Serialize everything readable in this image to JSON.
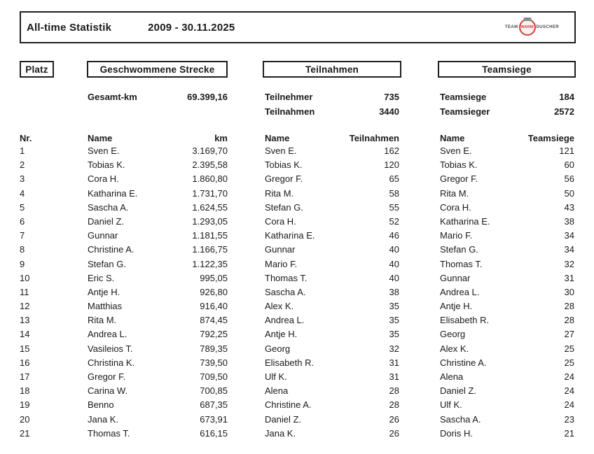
{
  "title_bar": {
    "title": "All-time Statistik",
    "date_range": "2009 - 30.11.2025",
    "logo": {
      "team": "TEAM",
      "warm": "WARM",
      "duscher": "DUSCHER",
      "circle_color": "#d63a3a"
    }
  },
  "section_headers": {
    "platz": "Platz",
    "strecke": "Geschwommene Strecke",
    "teilnahmen": "Teilnahmen",
    "teamsiege": "Teamsiege"
  },
  "summary": {
    "gesamt_km_label": "Gesamt-km",
    "gesamt_km_value": "69.399,16",
    "teilnehmer_label": "Teilnehmer",
    "teilnehmer_value": "735",
    "teilnahmen_label": "Teilnahmen",
    "teilnahmen_value": "3440",
    "teamsiege_label": "Teamsiege",
    "teamsiege_value": "184",
    "teamsieger_label": "Teamsieger",
    "teamsieger_value": "2572"
  },
  "table": {
    "headers": {
      "nr": "Nr.",
      "name1": "Name",
      "km": "km",
      "name2": "Name",
      "teilnahmen": "Teilnahmen",
      "name3": "Name",
      "teamsiege": "Teamsiege"
    },
    "rows": [
      {
        "nr": "1",
        "km_name": "Sven E.",
        "km": "3.169,70",
        "tn_name": "Sven E.",
        "tn": "162",
        "ts_name": "Sven E.",
        "ts": "121"
      },
      {
        "nr": "2",
        "km_name": "Tobias K.",
        "km": "2.395,58",
        "tn_name": "Tobias K.",
        "tn": "120",
        "ts_name": "Tobias K.",
        "ts": "60"
      },
      {
        "nr": "3",
        "km_name": "Cora H.",
        "km": "1.860,80",
        "tn_name": "Gregor F.",
        "tn": "65",
        "ts_name": "Gregor F.",
        "ts": "56"
      },
      {
        "nr": "4",
        "km_name": "Katharina E.",
        "km": "1.731,70",
        "tn_name": "Rita M.",
        "tn": "58",
        "ts_name": "Rita M.",
        "ts": "50"
      },
      {
        "nr": "5",
        "km_name": "Sascha A.",
        "km": "1.624,55",
        "tn_name": "Stefan G.",
        "tn": "55",
        "ts_name": "Cora H.",
        "ts": "43"
      },
      {
        "nr": "6",
        "km_name": "Daniel Z.",
        "km": "1.293,05",
        "tn_name": "Cora H.",
        "tn": "52",
        "ts_name": "Katharina E.",
        "ts": "38"
      },
      {
        "nr": "7",
        "km_name": "Gunnar",
        "km": "1.181,55",
        "tn_name": "Katharina E.",
        "tn": "46",
        "ts_name": "Mario F.",
        "ts": "34"
      },
      {
        "nr": "8",
        "km_name": "Christine A.",
        "km": "1.166,75",
        "tn_name": "Gunnar",
        "tn": "40",
        "ts_name": "Stefan G.",
        "ts": "34"
      },
      {
        "nr": "9",
        "km_name": "Stefan G.",
        "km": "1.122,35",
        "tn_name": "Mario F.",
        "tn": "40",
        "ts_name": "Thomas T.",
        "ts": "32"
      },
      {
        "nr": "10",
        "km_name": "Eric S.",
        "km": "995,05",
        "tn_name": "Thomas T.",
        "tn": "40",
        "ts_name": "Gunnar",
        "ts": "31"
      },
      {
        "nr": "11",
        "km_name": "Antje H.",
        "km": "926,80",
        "tn_name": "Sascha A.",
        "tn": "38",
        "ts_name": "Andrea L.",
        "ts": "30"
      },
      {
        "nr": "12",
        "km_name": "Matthias",
        "km": "916,40",
        "tn_name": "Alex K.",
        "tn": "35",
        "ts_name": "Antje H.",
        "ts": "28"
      },
      {
        "nr": "13",
        "km_name": "Rita M.",
        "km": "874,45",
        "tn_name": "Andrea L.",
        "tn": "35",
        "ts_name": "Elisabeth R.",
        "ts": "28"
      },
      {
        "nr": "14",
        "km_name": "Andrea L.",
        "km": "792,25",
        "tn_name": "Antje H.",
        "tn": "35",
        "ts_name": "Georg",
        "ts": "27"
      },
      {
        "nr": "15",
        "km_name": "Vasileios T.",
        "km": "789,35",
        "tn_name": "Georg",
        "tn": "32",
        "ts_name": "Alex K.",
        "ts": "25"
      },
      {
        "nr": "16",
        "km_name": "Christina K.",
        "km": "739,50",
        "tn_name": "Elisabeth R.",
        "tn": "31",
        "ts_name": "Christine A.",
        "ts": "25"
      },
      {
        "nr": "17",
        "km_name": "Gregor F.",
        "km": "709,50",
        "tn_name": "Ulf K.",
        "tn": "31",
        "ts_name": "Alena",
        "ts": "24"
      },
      {
        "nr": "18",
        "km_name": "Carina W.",
        "km": "700,85",
        "tn_name": "Alena",
        "tn": "28",
        "ts_name": "Daniel Z.",
        "ts": "24"
      },
      {
        "nr": "19",
        "km_name": "Benno",
        "km": "687,35",
        "tn_name": "Christine A.",
        "tn": "28",
        "ts_name": "Ulf K.",
        "ts": "24"
      },
      {
        "nr": "20",
        "km_name": "Jana K.",
        "km": "673,91",
        "tn_name": "Daniel Z.",
        "tn": "26",
        "ts_name": "Sascha A.",
        "ts": "23"
      },
      {
        "nr": "21",
        "km_name": "Thomas T.",
        "km": "616,15",
        "tn_name": "Jana K.",
        "tn": "26",
        "ts_name": "Doris H.",
        "ts": "21"
      }
    ]
  }
}
